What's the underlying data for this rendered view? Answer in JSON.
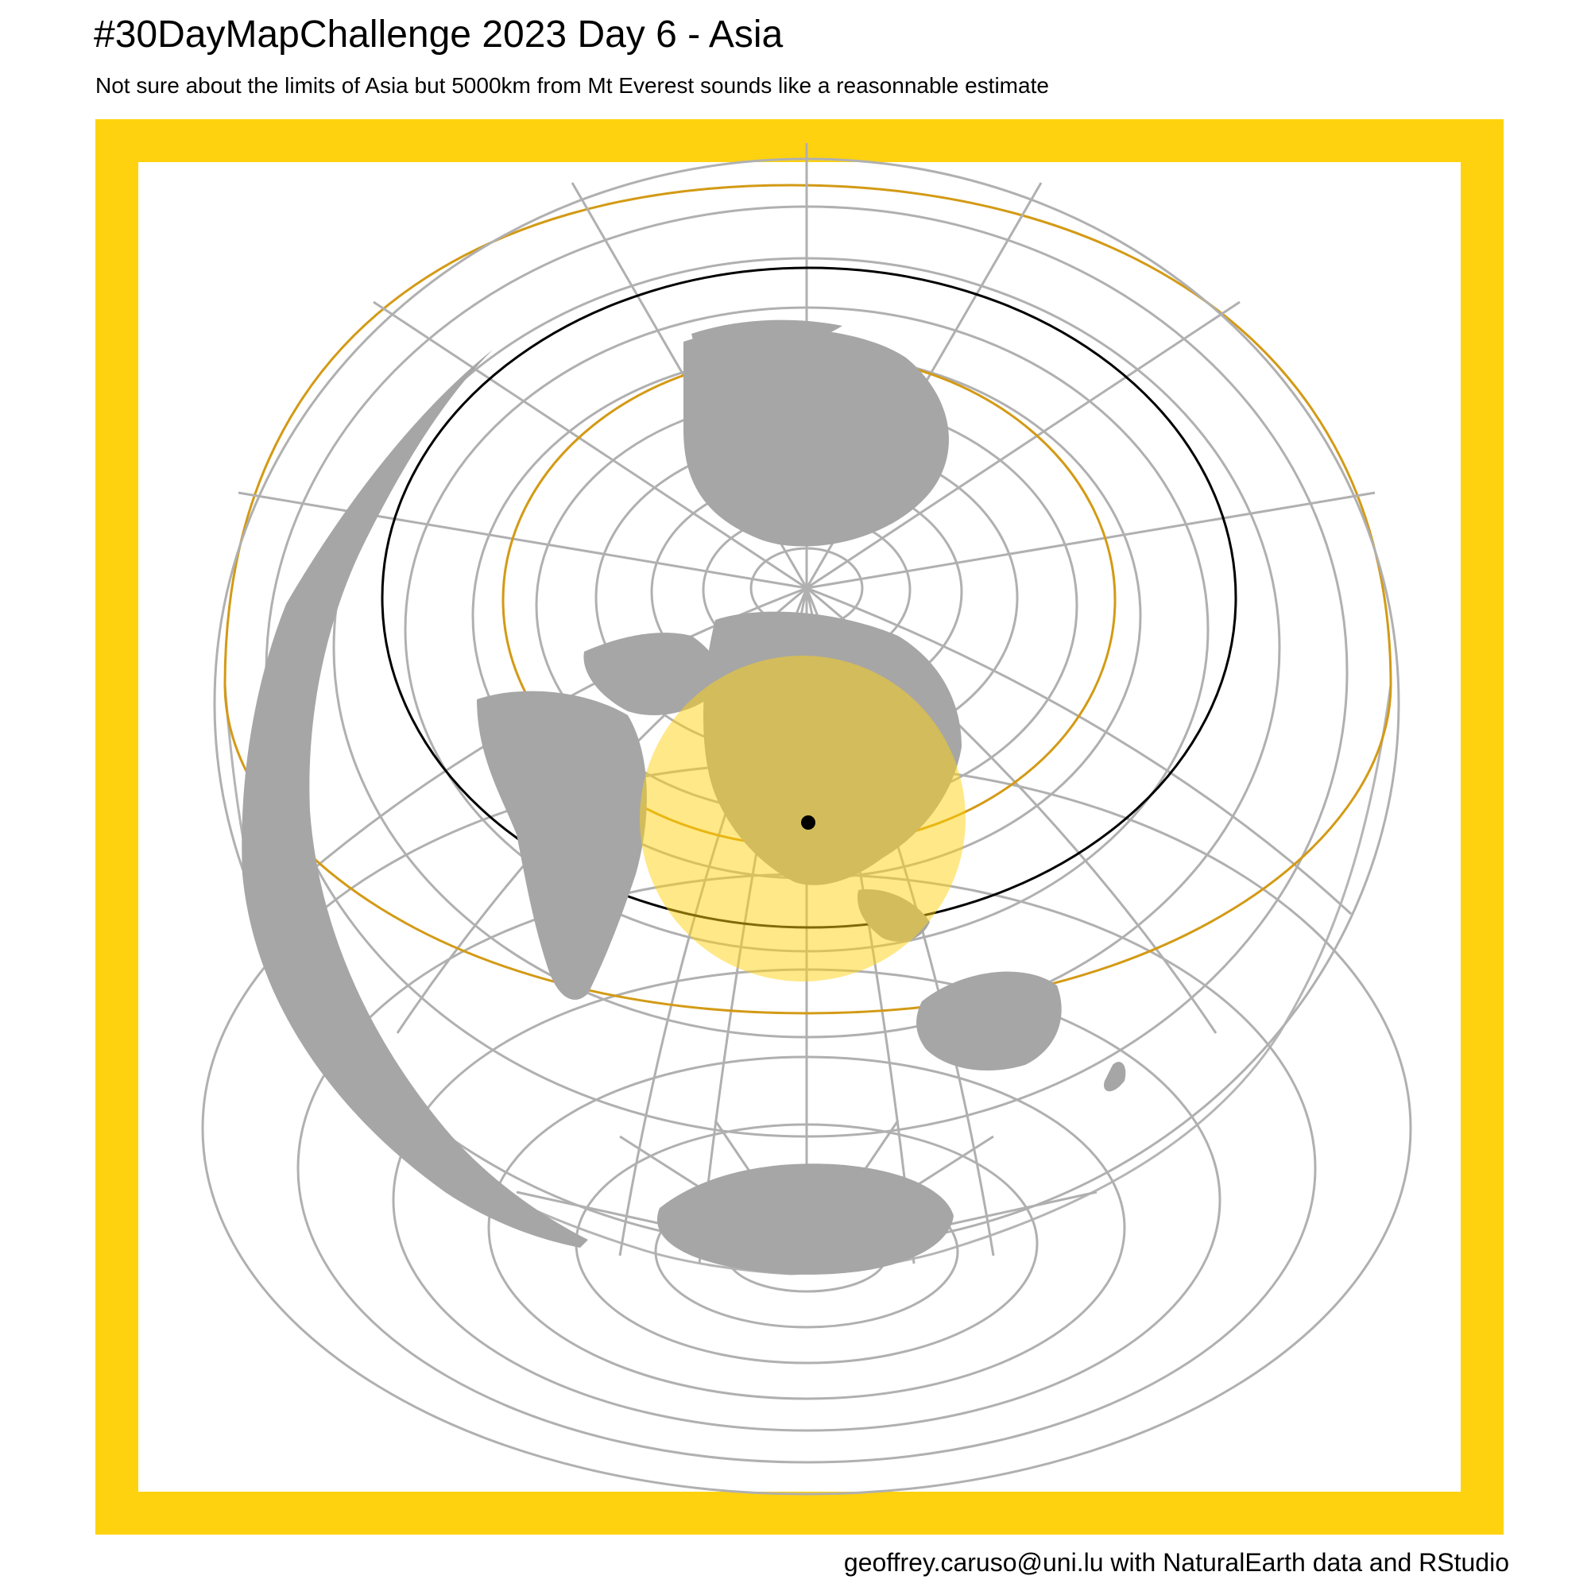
{
  "header": {
    "title": "#30DayMapChallenge 2023 Day 6 - Asia",
    "subtitle": "Not sure about the limits of Asia but 5000km from Mt Everest sounds like a reasonnable estimate"
  },
  "footer": {
    "caption": "geoffrey.caruso@uni.lu with NaturalEarth data and RStudio"
  },
  "map": {
    "projection": "azimuthal (polar-centered), graticule shown",
    "center_point_label": "",
    "buffer_radius_km": 5000,
    "colors": {
      "frame": "#ffd20f",
      "land": "#a6a6a6",
      "graticule": "#b0b0b0",
      "buffer_fill": "#ffd20f",
      "ring_gold": "#d39a15",
      "ring_black": "#000000",
      "point": "#000000"
    }
  }
}
